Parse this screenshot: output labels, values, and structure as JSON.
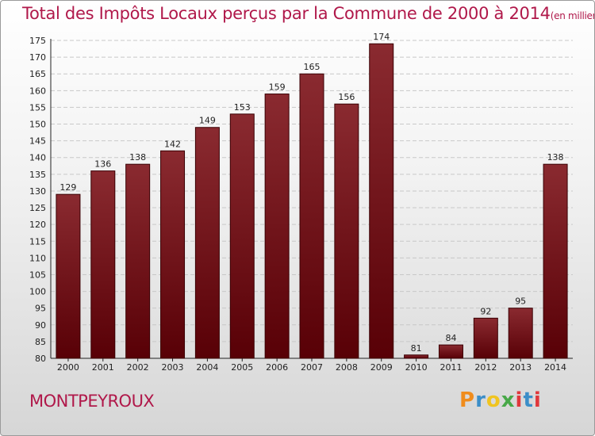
{
  "chart_data": {
    "type": "bar",
    "title": "Total des Impôts Locaux perçus par la Commune de 2000 à 2014",
    "title_unit": "(en milliers d'€)",
    "categories": [
      "2000",
      "2001",
      "2002",
      "2003",
      "2004",
      "2005",
      "2006",
      "2007",
      "2008",
      "2009",
      "2010",
      "2011",
      "2012",
      "2013",
      "2014"
    ],
    "values": [
      129,
      136,
      138,
      142,
      149,
      153,
      159,
      165,
      156,
      174,
      81,
      84,
      92,
      95,
      138
    ],
    "ylim": [
      80,
      175
    ],
    "yticks": [
      80,
      85,
      90,
      95,
      100,
      105,
      110,
      115,
      120,
      125,
      130,
      135,
      140,
      145,
      150,
      155,
      160,
      165,
      170,
      175
    ],
    "xlabel": "",
    "ylabel": "",
    "bar_color": "#7a1a1e",
    "bar_color_dark": "#5a0008"
  },
  "commune": "MONTPEYROUX",
  "logo": {
    "p": "P",
    "r": "r",
    "o": "o",
    "x": "x",
    "i": "i",
    "t": "t",
    "i2": "i"
  }
}
